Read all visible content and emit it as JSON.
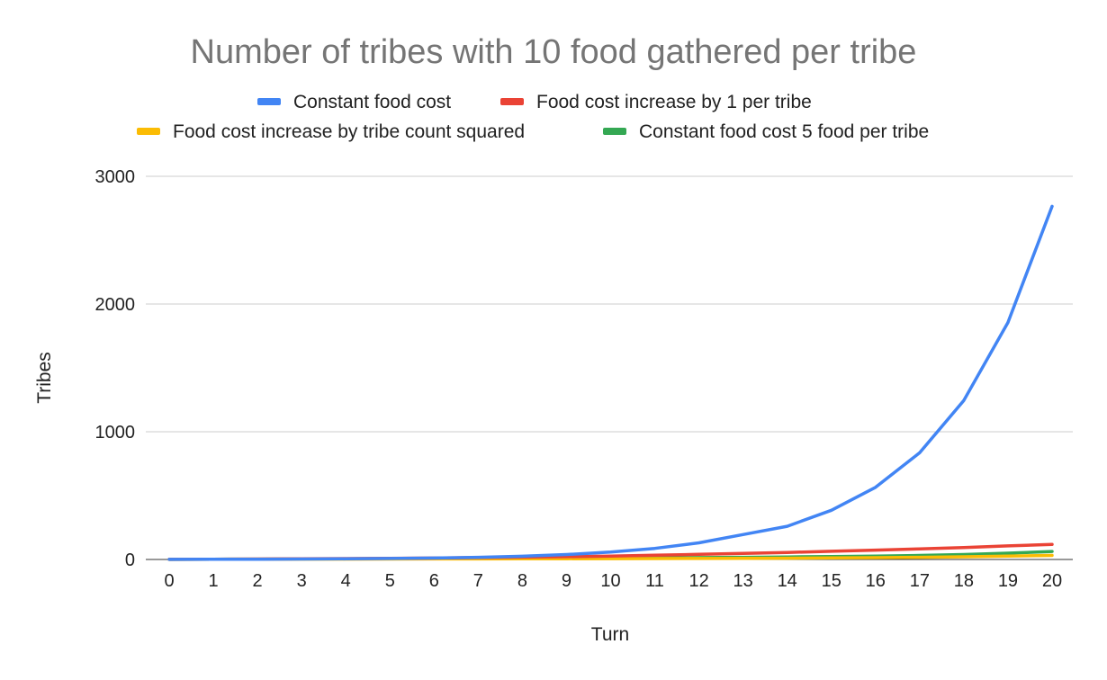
{
  "chart_data": {
    "type": "line",
    "title": "Number of tribes with 10 food gathered per tribe",
    "xlabel": "Turn",
    "ylabel": "Tribes",
    "ylim": [
      0,
      3000
    ],
    "yticks": [
      0,
      1000,
      2000,
      3000
    ],
    "grid": true,
    "legend_position": "top",
    "x": [
      "0",
      "1",
      "2",
      "3",
      "4",
      "5",
      "6",
      "7",
      "8",
      "9",
      "10",
      "11",
      "12",
      "13",
      "14",
      "15",
      "16",
      "17",
      "18",
      "19",
      "20"
    ],
    "series": [
      {
        "name": "Constant food cost",
        "color": "#4285f4",
        "values": [
          1,
          1.5,
          2.25,
          3.4,
          5.1,
          7.6,
          11.4,
          17.1,
          25.6,
          38.4,
          57.7,
          86.5,
          130,
          195,
          260,
          385,
          565,
          835,
          1245,
          1855,
          2765
        ]
      },
      {
        "name": "Food cost increase by 1 per tribe",
        "color": "#ea4335",
        "values": [
          1,
          2,
          3.5,
          5,
          7,
          9,
          11.5,
          14.5,
          18,
          22,
          27,
          33,
          40,
          47,
          55,
          64,
          73,
          83,
          94,
          106,
          118
        ]
      },
      {
        "name": "Food cost increase by tribe count squared",
        "color": "#fbbc04",
        "values": [
          1,
          1.5,
          2,
          2.5,
          3,
          3.5,
          4,
          4.5,
          5,
          5.5,
          6,
          7,
          8,
          9,
          10,
          12,
          14,
          17,
          21,
          26,
          32
        ]
      },
      {
        "name": "Constant food cost 5 food per tribe",
        "color": "#34a853",
        "values": [
          1,
          2,
          3,
          4,
          5,
          6,
          7,
          8,
          9,
          10,
          11,
          13,
          15,
          17,
          20,
          23,
          27,
          32,
          39,
          49,
          63
        ]
      }
    ]
  }
}
